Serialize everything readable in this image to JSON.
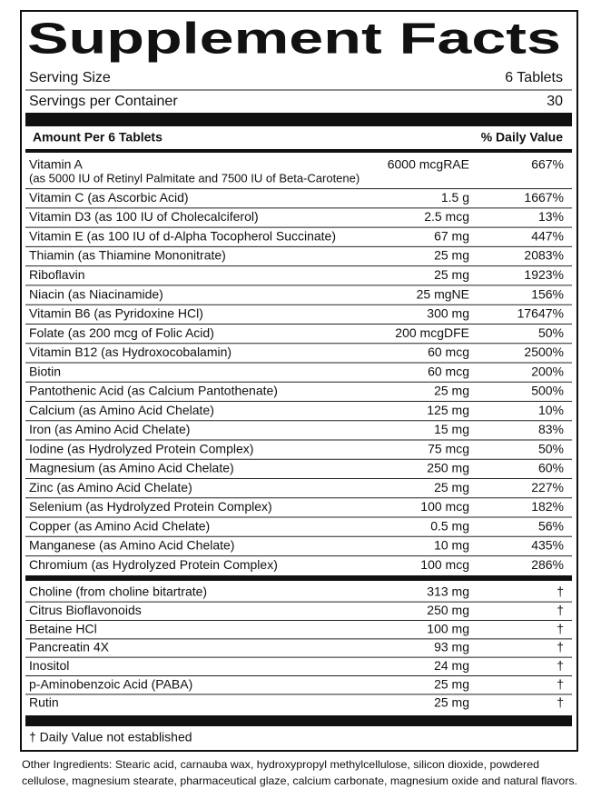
{
  "header": {
    "title": "Supplement Facts"
  },
  "serving": {
    "size_label": "Serving Size",
    "size_value": "6 Tablets",
    "servings_label": "Servings per Container",
    "servings_value": "30"
  },
  "table": {
    "header": [
      "Amount Per 6 Tablets",
      "% Daily Value"
    ],
    "rows": [
      {
        "name": "Vitamin A",
        "note": "(as 5000 IU of Retinyl Palmitate and 7500 IU of Beta-Carotene)",
        "amount": "6000 mcgRAE",
        "dv": "667%"
      },
      {
        "name": "Vitamin C (as Ascorbic Acid)",
        "amount": "1.5 g",
        "dv": "1667%"
      },
      {
        "name": "Vitamin D3 (as 100 IU of Cholecalciferol)",
        "amount": "2.5 mcg",
        "dv": "13%"
      },
      {
        "name": "Vitamin E (as 100 IU of d-Alpha Tocopherol Succinate)",
        "amount": "67 mg",
        "dv": "447%"
      },
      {
        "name": "Thiamin (as Thiamine Mononitrate)",
        "amount": "25 mg",
        "dv": "2083%"
      },
      {
        "name": "Riboflavin",
        "amount": "25 mg",
        "dv": "1923%"
      },
      {
        "name": "Niacin (as Niacinamide)",
        "amount": "25 mgNE",
        "dv": "156%"
      },
      {
        "name": "Vitamin B6 (as Pyridoxine HCl)",
        "amount": "300 mg",
        "dv": "17647%"
      },
      {
        "name": "Folate (as 200 mcg of Folic Acid)",
        "amount": "200 mcgDFE",
        "dv": "50%"
      },
      {
        "name": "Vitamin B12 (as Hydroxocobalamin)",
        "amount": "60 mcg",
        "dv": "2500%"
      },
      {
        "name": "Biotin",
        "amount": "60 mcg",
        "dv": "200%"
      },
      {
        "name": "Pantothenic Acid (as Calcium Pantothenate)",
        "amount": "25 mg",
        "dv": "500%"
      },
      {
        "name": "Calcium (as Amino Acid Chelate)",
        "amount": "125 mg",
        "dv": "10%"
      },
      {
        "name": "Iron (as Amino Acid Chelate)",
        "amount": "15 mg",
        "dv": "83%"
      },
      {
        "name": "Iodine (as Hydrolyzed Protein Complex)",
        "amount": "75 mcg",
        "dv": "50%"
      },
      {
        "name": "Magnesium (as Amino Acid Chelate)",
        "amount": "250 mg",
        "dv": "60%"
      },
      {
        "name": "Zinc (as Amino Acid Chelate)",
        "amount": "25 mg",
        "dv": "227%"
      },
      {
        "name": "Selenium (as Hydrolyzed Protein Complex)",
        "amount": "100 mcg",
        "dv": "182%"
      },
      {
        "name": "Copper (as Amino Acid Chelate)",
        "amount": "0.5 mg",
        "dv": "56%"
      },
      {
        "name": "Manganese (as Amino Acid Chelate)",
        "amount": "10 mg",
        "dv": "435%"
      },
      {
        "name": "Chromium (as Hydrolyzed Protein Complex)",
        "amount": "100 mcg",
        "dv": "286%"
      }
    ],
    "other_rows": [
      {
        "name": "Choline (from choline bitartrate)",
        "amount": "313 mg",
        "dv": "†"
      },
      {
        "name": "Citrus Bioflavonoids",
        "amount": "250 mg",
        "dv": "†"
      },
      {
        "name": "Betaine HCl",
        "amount": "100 mg",
        "dv": "†"
      },
      {
        "name": "Pancreatin 4X",
        "amount": "93 mg",
        "dv": "†"
      },
      {
        "name": "Inositol",
        "amount": "24 mg",
        "dv": "†"
      },
      {
        "name": "p-Aminobenzoic Acid (PABA)",
        "amount": "25 mg",
        "dv": "†"
      },
      {
        "name": "Rutin",
        "amount": "25 mg",
        "dv": "†"
      }
    ],
    "footnote": "† Daily Value not established"
  },
  "other_ingredients": [
    "Other Ingredients: Stearic acid, carnauba wax, hydroxypropyl methylcellulose, silicon dioxide, powdered",
    "cellulose, magnesium stearate, pharmaceutical glaze, calcium carbonate, magnesium oxide and natural flavors."
  ]
}
